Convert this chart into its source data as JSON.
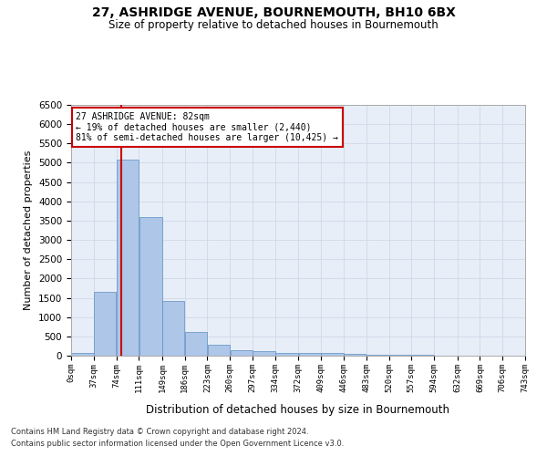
{
  "title": "27, ASHRIDGE AVENUE, BOURNEMOUTH, BH10 6BX",
  "subtitle": "Size of property relative to detached houses in Bournemouth",
  "xlabel": "Distribution of detached houses by size in Bournemouth",
  "ylabel": "Number of detached properties",
  "footer_line1": "Contains HM Land Registry data © Crown copyright and database right 2024.",
  "footer_line2": "Contains public sector information licensed under the Open Government Licence v3.0.",
  "bar_edges": [
    0,
    37,
    74,
    111,
    149,
    186,
    223,
    260,
    297,
    334,
    372,
    409,
    446,
    483,
    520,
    557,
    594,
    632,
    669,
    706,
    743
  ],
  "bar_heights": [
    75,
    1650,
    5075,
    3600,
    1420,
    620,
    290,
    140,
    110,
    80,
    60,
    75,
    40,
    30,
    20,
    15,
    10,
    10,
    8,
    5
  ],
  "bar_color": "#aec6e8",
  "bar_edgecolor": "#5a8fc0",
  "property_size": 82,
  "vline_color": "#cc0000",
  "annotation_text_line1": "27 ASHRIDGE AVENUE: 82sqm",
  "annotation_text_line2": "← 19% of detached houses are smaller (2,440)",
  "annotation_text_line3": "81% of semi-detached houses are larger (10,425) →",
  "annotation_box_color": "#cc0000",
  "annotation_bg": "#ffffff",
  "ylim": [
    0,
    6500
  ],
  "xlim": [
    0,
    743
  ],
  "yticks": [
    0,
    500,
    1000,
    1500,
    2000,
    2500,
    3000,
    3500,
    4000,
    4500,
    5000,
    5500,
    6000,
    6500
  ],
  "tick_labels": [
    "0sqm",
    "37sqm",
    "74sqm",
    "111sqm",
    "149sqm",
    "186sqm",
    "223sqm",
    "260sqm",
    "297sqm",
    "334sqm",
    "372sqm",
    "409sqm",
    "446sqm",
    "483sqm",
    "520sqm",
    "557sqm",
    "594sqm",
    "632sqm",
    "669sqm",
    "706sqm",
    "743sqm"
  ],
  "grid_color": "#d0d8e8",
  "bg_color": "#e8eef8",
  "fig_bg": "#ffffff"
}
